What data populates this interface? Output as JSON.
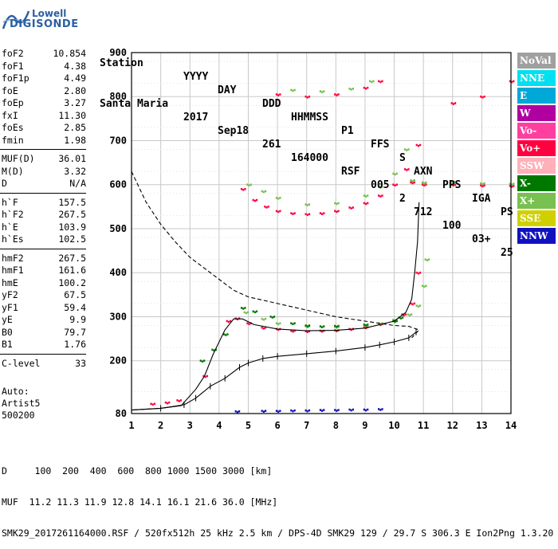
{
  "logo": {
    "line1": "Lowell",
    "line2": "DIGISONDE"
  },
  "header": {
    "labels": [
      "Station",
      "YYYY",
      "DAY",
      "DDD",
      "HHMMSS",
      "P1",
      "FFS",
      "S",
      "AXN",
      "PPS",
      "IGA",
      "PS"
    ],
    "values": [
      "Santa Maria",
      "2017",
      "Sep18",
      "261",
      "164000",
      "RSF",
      "005",
      "2",
      "712",
      "100",
      "03+",
      "25"
    ]
  },
  "params": {
    "group1": [
      {
        "k": "foF2",
        "v": "10.854"
      },
      {
        "k": "foF1",
        "v": "4.38"
      },
      {
        "k": "foF1p",
        "v": "4.49"
      },
      {
        "k": "foE",
        "v": "2.80"
      },
      {
        "k": "foEp",
        "v": "3.27"
      },
      {
        "k": "fxI",
        "v": "11.30"
      },
      {
        "k": "foEs",
        "v": "2.85"
      },
      {
        "k": "fmin",
        "v": "1.98"
      }
    ],
    "group2": [
      {
        "k": "MUF(D)",
        "v": "36.01"
      },
      {
        "k": "M(D)",
        "v": "3.32"
      },
      {
        "k": "D",
        "v": "N/A"
      }
    ],
    "group3": [
      {
        "k": "h`F",
        "v": "157.5"
      },
      {
        "k": "h`F2",
        "v": "267.5"
      },
      {
        "k": "h`E",
        "v": "103.9"
      },
      {
        "k": "h`Es",
        "v": "102.5"
      }
    ],
    "group4": [
      {
        "k": "hmF2",
        "v": "267.5"
      },
      {
        "k": "hmF1",
        "v": "161.6"
      },
      {
        "k": "hmE",
        "v": "100.2"
      },
      {
        "k": "yF2",
        "v": "67.5"
      },
      {
        "k": "yF1",
        "v": "59.4"
      },
      {
        "k": "yE",
        "v": "9.9"
      },
      {
        "k": "B0",
        "v": "79.7"
      },
      {
        "k": "B1",
        "v": "1.76"
      }
    ],
    "group5": [
      {
        "k": "C-level",
        "v": "33"
      }
    ],
    "auto": [
      "Auto:",
      "Artist5",
      "500200"
    ]
  },
  "legend": [
    {
      "label": "NoVal",
      "bg": "#a0a0a0",
      "fg": "#ffffff"
    },
    {
      "label": "NNE",
      "bg": "#00e0f0",
      "fg": "#ffffff"
    },
    {
      "label": "E",
      "bg": "#00a8d8",
      "fg": "#ffffff"
    },
    {
      "label": "W",
      "bg": "#b000a0",
      "fg": "#ffffff"
    },
    {
      "label": "Vo-",
      "bg": "#ff3fa0",
      "fg": "#ffffff"
    },
    {
      "label": "Vo+",
      "bg": "#ff0040",
      "fg": "#ffffff"
    },
    {
      "label": "SSW",
      "bg": "#ffb0b8",
      "fg": "#ffffff"
    },
    {
      "label": "X-",
      "bg": "#007800",
      "fg": "#ffffff"
    },
    {
      "label": "X+",
      "bg": "#78c050",
      "fg": "#ffffff"
    },
    {
      "label": "SSE",
      "bg": "#d0d000",
      "fg": "#ffffff"
    },
    {
      "label": "NNW",
      "bg": "#1010c0",
      "fg": "#ffffff"
    }
  ],
  "footer": {
    "line1": "D     100  200  400  600  800 1000 1500 3000 [km]",
    "line2": "MUF  11.2 11.3 11.9 12.8 14.1 16.1 21.6 36.0 [MHz]",
    "line3": "SMK29_2017261164000.RSF / 520fx512h 25 kHz 2.5 km / DPS-4D SMK29 129 / 29.7 S 306.3 E Ion2Png 1.3.20"
  },
  "chart_data": {
    "type": "scatter",
    "xlim": [
      1,
      14
    ],
    "ylim": [
      80,
      900
    ],
    "xticks": [
      1,
      2,
      3,
      4,
      5,
      6,
      7,
      8,
      9,
      10,
      11,
      12,
      13,
      14
    ],
    "yticks": [
      80,
      200,
      300,
      400,
      500,
      600,
      700,
      800,
      900
    ],
    "grid": true,
    "series": [
      {
        "name": "Vo+",
        "color": "#ff0040",
        "points": [
          [
            1.7,
            102
          ],
          [
            2.2,
            105
          ],
          [
            2.6,
            110
          ],
          [
            3.5,
            165
          ],
          [
            4.3,
            290
          ],
          [
            4.6,
            296
          ],
          [
            5,
            285
          ],
          [
            5.5,
            275
          ],
          [
            6,
            272
          ],
          [
            6.5,
            268
          ],
          [
            7,
            267
          ],
          [
            7.5,
            268
          ],
          [
            8,
            269
          ],
          [
            8.5,
            272
          ],
          [
            9,
            276
          ],
          [
            9.5,
            283
          ],
          [
            10,
            292
          ],
          [
            10.3,
            305
          ],
          [
            10.6,
            330
          ],
          [
            10.8,
            400
          ],
          [
            4.8,
            590
          ],
          [
            5.2,
            565
          ],
          [
            5.6,
            550
          ],
          [
            6,
            540
          ],
          [
            6.5,
            535
          ],
          [
            7,
            533
          ],
          [
            7.5,
            535
          ],
          [
            8,
            540
          ],
          [
            8.5,
            548
          ],
          [
            9,
            558
          ],
          [
            9.5,
            575
          ],
          [
            10,
            600
          ],
          [
            10.4,
            635
          ],
          [
            10.8,
            690
          ],
          [
            6,
            805
          ],
          [
            7,
            800
          ],
          [
            8,
            805
          ],
          [
            9,
            820
          ],
          [
            9.5,
            835
          ],
          [
            10.6,
            605
          ],
          [
            11,
            600
          ],
          [
            12,
            600
          ],
          [
            13,
            598
          ],
          [
            14,
            597
          ],
          [
            12,
            785
          ],
          [
            13,
            800
          ],
          [
            14,
            835
          ]
        ]
      },
      {
        "name": "X+",
        "color": "#78c050",
        "points": [
          [
            4.9,
            310
          ],
          [
            5.5,
            295
          ],
          [
            6,
            285
          ],
          [
            7,
            278
          ],
          [
            8,
            277
          ],
          [
            9,
            280
          ],
          [
            9.5,
            285
          ],
          [
            10,
            293
          ],
          [
            10.5,
            305
          ],
          [
            10.8,
            325
          ],
          [
            11,
            370
          ],
          [
            11.1,
            430
          ],
          [
            5,
            600
          ],
          [
            5.5,
            585
          ],
          [
            6,
            570
          ],
          [
            7,
            555
          ],
          [
            8,
            558
          ],
          [
            9,
            575
          ],
          [
            9.5,
            595
          ],
          [
            10,
            625
          ],
          [
            10.4,
            680
          ],
          [
            10.6,
            610
          ],
          [
            11,
            605
          ],
          [
            12,
            606
          ],
          [
            13,
            603
          ],
          [
            14,
            602
          ],
          [
            6.5,
            815
          ],
          [
            7.5,
            812
          ],
          [
            8.5,
            818
          ],
          [
            9.2,
            835
          ]
        ]
      },
      {
        "name": "X-",
        "color": "#007800",
        "points": [
          [
            4.8,
            320
          ],
          [
            5.2,
            312
          ],
          [
            5.8,
            300
          ],
          [
            6.5,
            285
          ],
          [
            7,
            280
          ],
          [
            7.5,
            278
          ],
          [
            8,
            279
          ],
          [
            9,
            282
          ],
          [
            10,
            290
          ],
          [
            10.2,
            298
          ],
          [
            3.4,
            200
          ],
          [
            3.8,
            225
          ],
          [
            4.2,
            260
          ]
        ]
      },
      {
        "name": "NNW",
        "color": "#1010c0",
        "points": [
          [
            4.6,
            85
          ],
          [
            5.5,
            86
          ],
          [
            6,
            86
          ],
          [
            6.5,
            87
          ],
          [
            7,
            87
          ],
          [
            7.5,
            88
          ],
          [
            8,
            88
          ],
          [
            8.5,
            89
          ],
          [
            9,
            89
          ],
          [
            9.5,
            90
          ]
        ]
      }
    ],
    "lines": [
      {
        "name": "ionogram trace",
        "style": "solid",
        "points": [
          [
            1,
            88
          ],
          [
            2,
            92
          ],
          [
            2.7,
            98
          ],
          [
            3.2,
            135
          ],
          [
            3.5,
            165
          ],
          [
            3.8,
            215
          ],
          [
            4.2,
            270
          ],
          [
            4.5,
            295
          ],
          [
            4.8,
            295
          ],
          [
            5.2,
            282
          ],
          [
            6,
            272
          ],
          [
            7,
            268
          ],
          [
            8,
            269
          ],
          [
            9,
            274
          ],
          [
            10,
            290
          ],
          [
            10.4,
            310
          ],
          [
            10.6,
            340
          ],
          [
            10.7,
            400
          ],
          [
            10.8,
            470
          ],
          [
            10.85,
            560
          ]
        ]
      },
      {
        "name": "profile",
        "style": "solid",
        "ticked": true,
        "points": [
          [
            1,
            88
          ],
          [
            2,
            92
          ],
          [
            2.8,
            100
          ],
          [
            3.2,
            115
          ],
          [
            3.7,
            142
          ],
          [
            4.2,
            160
          ],
          [
            4.7,
            185
          ],
          [
            5,
            195
          ],
          [
            5.5,
            205
          ],
          [
            6,
            210
          ],
          [
            7,
            216
          ],
          [
            8,
            222
          ],
          [
            9,
            230
          ],
          [
            9.5,
            236
          ],
          [
            10,
            243
          ],
          [
            10.5,
            252
          ],
          [
            10.75,
            265
          ]
        ]
      },
      {
        "name": "MUF curve",
        "style": "dashed",
        "points": [
          [
            1,
            630
          ],
          [
            1.5,
            560
          ],
          [
            2,
            510
          ],
          [
            2.5,
            470
          ],
          [
            3,
            435
          ],
          [
            3.5,
            410
          ],
          [
            4,
            385
          ],
          [
            4.5,
            360
          ],
          [
            5,
            345
          ],
          [
            6,
            330
          ],
          [
            7,
            315
          ],
          [
            8,
            300
          ],
          [
            9,
            290
          ],
          [
            10,
            280
          ],
          [
            10.5,
            278
          ],
          [
            10.85,
            270
          ],
          [
            10.6,
            252
          ]
        ]
      }
    ]
  }
}
